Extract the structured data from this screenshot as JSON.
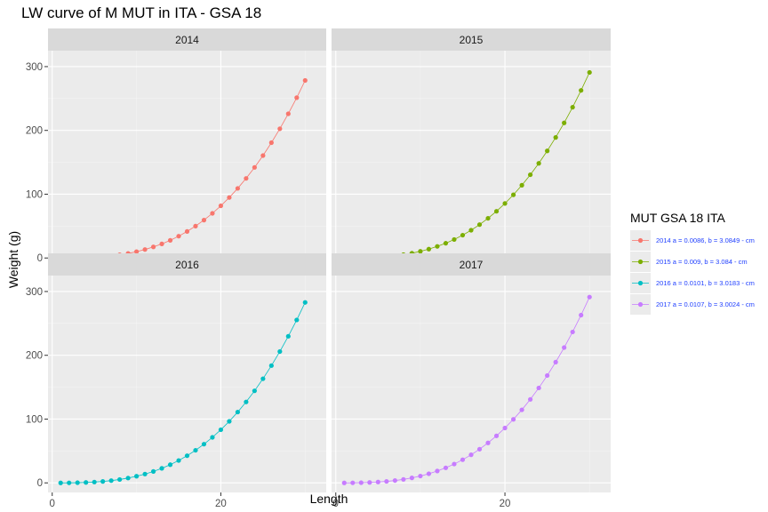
{
  "chart_data": {
    "type": "line",
    "title": "LW curve of M MUT in ITA - GSA 18",
    "xlabel": "Length",
    "ylabel": "Weight (g)",
    "xlim": [
      -0.5,
      32.5
    ],
    "ylim": [
      -15,
      325
    ],
    "x_ticks": [
      0,
      20
    ],
    "x_tick_labels": [
      "0",
      "20"
    ],
    "y_ticks": [
      0,
      100,
      200,
      300
    ],
    "y_tick_labels": [
      "0",
      "100",
      "200",
      "300"
    ],
    "grid": true,
    "legend_title": "MUT GSA 18 ITA",
    "legend_position": "right",
    "x": [
      1,
      2,
      3,
      4,
      5,
      6,
      7,
      8,
      9,
      10,
      11,
      12,
      13,
      14,
      15,
      16,
      17,
      18,
      19,
      20,
      21,
      22,
      23,
      24,
      25,
      26,
      27,
      28,
      29,
      30
    ],
    "panels": [
      "2014",
      "2015",
      "2016",
      "2017"
    ],
    "series": [
      {
        "panel": "2014",
        "legend_label": "2014 a = 0.0086, b = 3.0849 - cm",
        "color": "#F8766D",
        "values": [
          0.0086,
          0.073,
          0.256,
          0.618,
          1.22,
          2.12,
          3.38,
          5.06,
          7.23,
          9.96,
          13.3,
          17.4,
          22.1,
          27.7,
          34.2,
          41.6,
          50.0,
          59.4,
          70.0,
          81.8,
          94.8,
          109.1,
          124.8,
          142.0,
          160.6,
          180.8,
          202.6,
          226.1,
          251.3,
          278.3
        ]
      },
      {
        "panel": "2015",
        "legend_label": "2015 a = 0.009, b = 3.084 - cm",
        "color": "#7CAE00",
        "values": [
          0.009,
          0.076,
          0.267,
          0.646,
          1.27,
          2.22,
          3.54,
          5.3,
          7.56,
          10.4,
          13.9,
          18.2,
          23.1,
          29.0,
          35.8,
          43.5,
          52.3,
          62.2,
          73.2,
          85.5,
          99.1,
          114.1,
          130.5,
          148.4,
          167.9,
          189.0,
          211.8,
          236.3,
          262.7,
          290.9
        ]
      },
      {
        "panel": "2016",
        "legend_label": "2016 a = 0.0101, b = 3.0183 - cm",
        "color": "#00BFC4",
        "values": [
          0.0101,
          0.082,
          0.277,
          0.658,
          1.29,
          2.23,
          3.54,
          5.29,
          7.54,
          10.4,
          13.8,
          17.9,
          22.8,
          28.5,
          35.1,
          42.6,
          51.1,
          60.7,
          71.4,
          83.3,
          96.5,
          111.0,
          126.9,
          144.3,
          163.3,
          183.8,
          205.9,
          229.8,
          255.4,
          282.9
        ]
      },
      {
        "panel": "2017",
        "legend_label": "2017 a = 0.0107, b = 3.0024 - cm",
        "color": "#C77CFF",
        "values": [
          0.0107,
          0.086,
          0.29,
          0.687,
          1.34,
          2.32,
          3.68,
          5.49,
          7.82,
          10.7,
          14.3,
          18.6,
          23.6,
          29.5,
          36.3,
          44.0,
          52.8,
          62.7,
          73.7,
          86.0,
          99.6,
          114.5,
          130.9,
          148.8,
          168.3,
          189.3,
          212.1,
          236.6,
          263.0,
          291.3
        ]
      }
    ]
  }
}
